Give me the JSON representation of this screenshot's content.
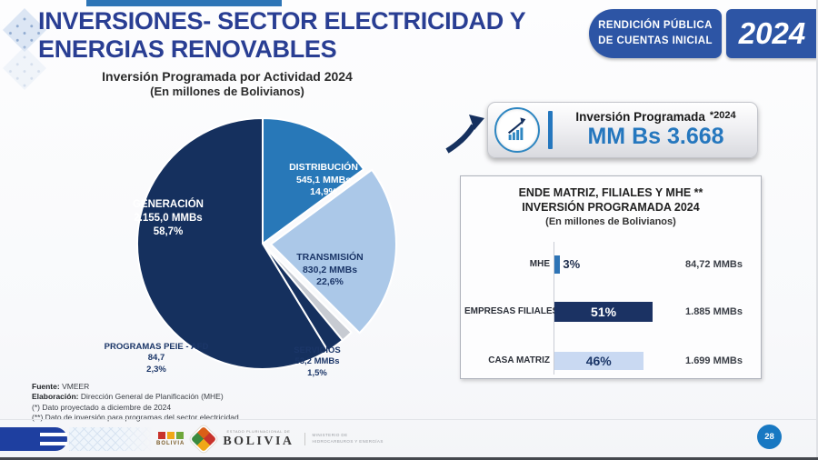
{
  "slide": {
    "title_line1": "INVERSIONES- SECTOR ELECTRICIDAD Y",
    "title_line2": "ENERGIAS RENOVABLES",
    "page_number": "28"
  },
  "header_badge": {
    "line1": "RENDICIÓN PÚBLICA",
    "line2": "DE CUENTAS INICIAL",
    "year": "2024"
  },
  "summary_badge": {
    "label": "Inversión Programada",
    "note": "*2024",
    "value": "MM Bs 3.668"
  },
  "chart_data": [
    {
      "type": "pie",
      "title": "Inversión Programada por Actividad 2024",
      "subtitle": "(En millones de Bolivianos)",
      "units": "MMBs (millones de Bolivianos)",
      "total_mmbs": 3668,
      "slices": [
        {
          "id": "distribucion",
          "label": "DISTRIBUCIÓN",
          "value": 545.1,
          "value_label": "545,1 MMBs",
          "pct": 14.9,
          "pct_label": "14,9%",
          "color": "#2878b8"
        },
        {
          "id": "transmision",
          "label": "TRANSMISIÓN",
          "value": 830.2,
          "value_label": "830,2 MMBs",
          "pct": 22.6,
          "pct_label": "22,6%",
          "color": "#abc8e8",
          "exploded": true
        },
        {
          "id": "servicios",
          "label": "SERVICIOS",
          "value": 53.2,
          "value_label": "53,2 MMBs",
          "pct": 1.5,
          "pct_label": "1,5%",
          "color": "#c7cbd2"
        },
        {
          "id": "programas-peie-afd",
          "label": "PROGRAMAS PEIE - AFD",
          "value": 84.7,
          "value_label": "84,7",
          "pct": 2.3,
          "pct_label": "2,3%",
          "color": "#15305e"
        },
        {
          "id": "generacion",
          "label": "GENERACIÓN",
          "value": 2155.0,
          "value_label": "2.155,0 MMBs",
          "pct": 58.7,
          "pct_label": "58,7%",
          "color": "#15305e"
        }
      ]
    },
    {
      "type": "bar",
      "orientation": "horizontal",
      "title_line1": "ENDE MATRIZ, FILIALES Y MHE **",
      "title_line2": "INVERSIÓN PROGRAMADA 2024",
      "subtitle": "(En millones de Bolivianos)",
      "xlim": [
        0,
        100
      ],
      "rows": [
        {
          "label": "MHE",
          "pct": 3,
          "pct_label": "3%",
          "value": 84.72,
          "value_label": "84,72 MMBs",
          "color": "#2e74b6",
          "pct_inside": false,
          "text_color": "#1b3668"
        },
        {
          "label": "EMPRESAS FILIALES",
          "pct": 51,
          "pct_label": "51%",
          "value": 1885,
          "value_label": "1.885 MMBs",
          "color": "#1b3263",
          "pct_inside": true,
          "text_color": "#ffffff"
        },
        {
          "label": "CASA MATRIZ",
          "pct": 46,
          "pct_label": "46%",
          "value": 1699,
          "value_label": "1.699 MMBs",
          "color": "#c9d9f2",
          "pct_inside": true,
          "text_color": "#1b3668"
        }
      ]
    }
  ],
  "footnotes": [
    {
      "bold": "Fuente:",
      "rest": " VMEER"
    },
    {
      "bold": "Elaboración:",
      "rest": " Dirección General de Planificación (MHE)"
    },
    {
      "bold": "",
      "rest": "(*) Dato proyectado a diciembre de 2024"
    },
    {
      "bold": "",
      "rest": "(**) Dato de inversión para programas del sector electricidad"
    }
  ],
  "footer": {
    "brand_squares_label": "BOLIVIA",
    "brand_country_small": "ESTADO PLURINACIONAL DE",
    "brand_country": "BOLIVIA",
    "ministry_line1": "MINISTERIO DE",
    "ministry_line2": "HIDROCARBUROS Y ENERGÍAS"
  },
  "colors": {
    "title_blue": "#293e93",
    "royal_blue": "#2d55a5",
    "accent_blue": "#2577be",
    "navy": "#15305e",
    "footer_blue": "#1e3fa0"
  }
}
